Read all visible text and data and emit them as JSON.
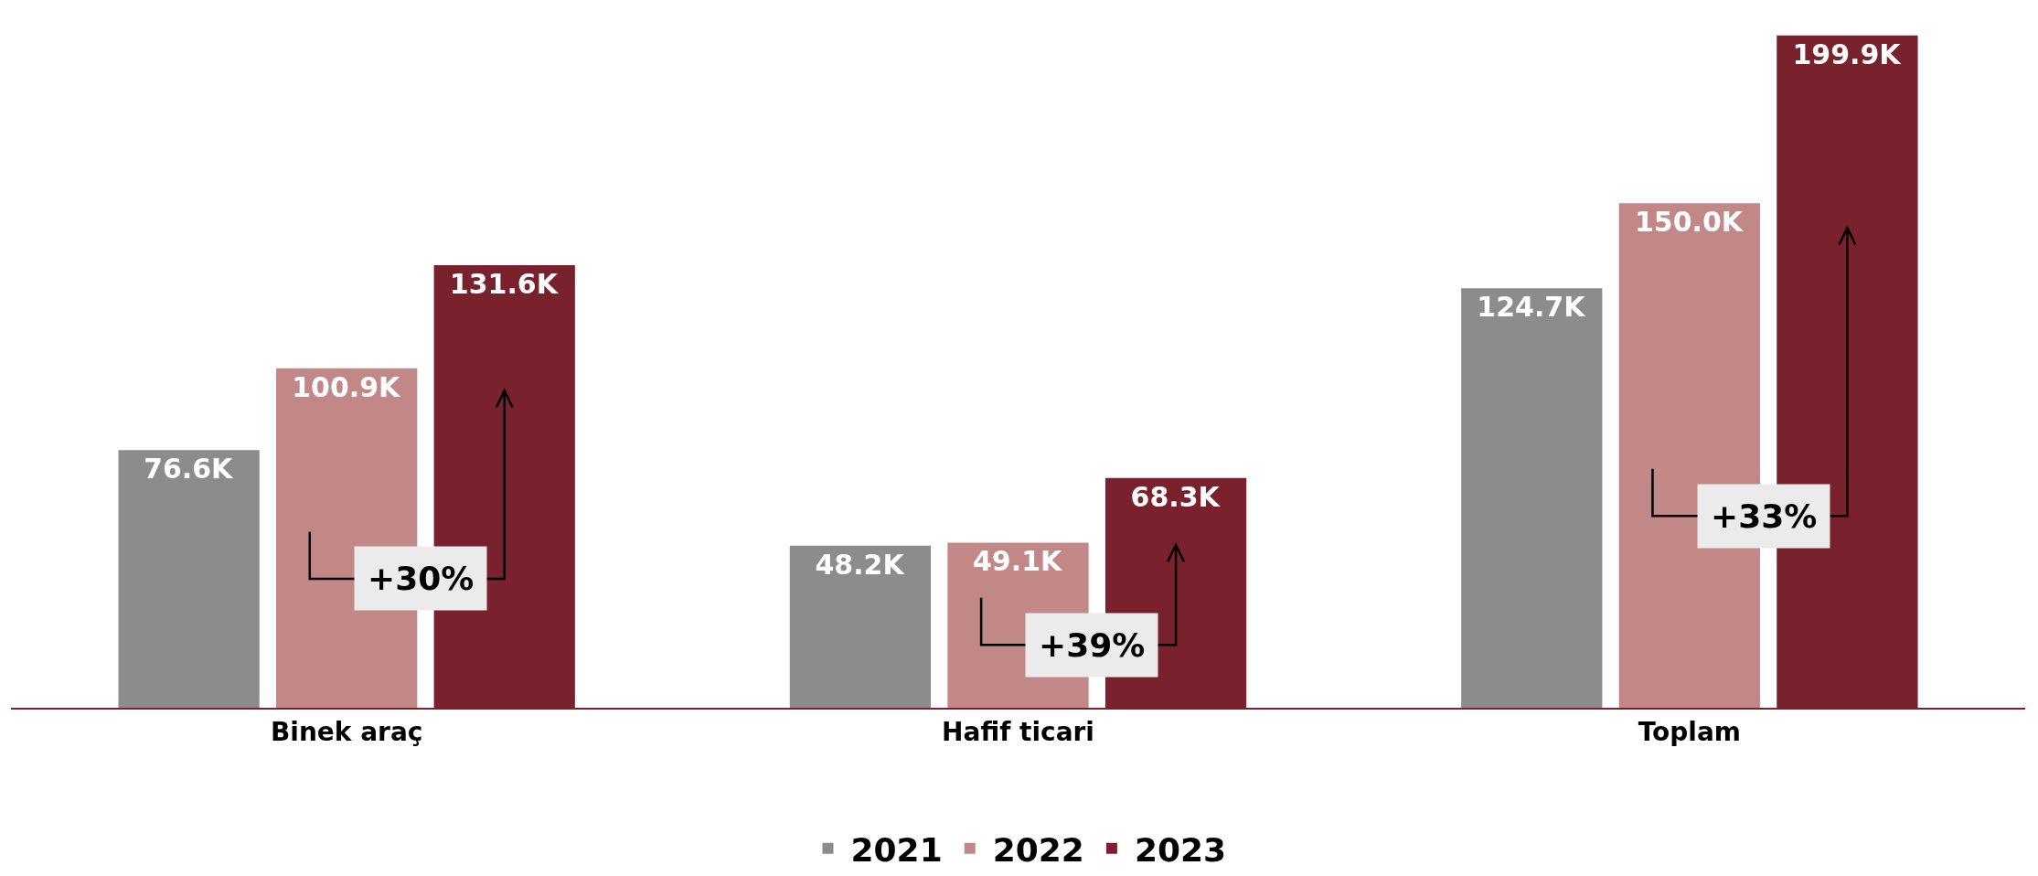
{
  "chart_data": {
    "type": "bar",
    "categories": [
      "Binek araç",
      "Hafif ticari",
      "Toplam"
    ],
    "series": [
      {
        "name": "2021",
        "color": "#8c8c8c",
        "values": [
          76.6,
          48.2,
          124.7
        ],
        "value_labels": [
          "76.6K",
          "48.2K",
          "124.7K"
        ]
      },
      {
        "name": "2022",
        "color": "#c28888",
        "values": [
          100.9,
          49.1,
          150.0
        ],
        "value_labels": [
          "100.9K",
          "49.1K",
          "150.0K"
        ]
      },
      {
        "name": "2023",
        "color": "#7a212e",
        "values": [
          131.6,
          68.3,
          199.9
        ],
        "value_labels": [
          "131.6K",
          "68.3K",
          "199.9K"
        ]
      }
    ],
    "annotations": [
      "+30%",
      "+39%",
      "+33%"
    ],
    "legend": "bottom",
    "grid": false
  }
}
